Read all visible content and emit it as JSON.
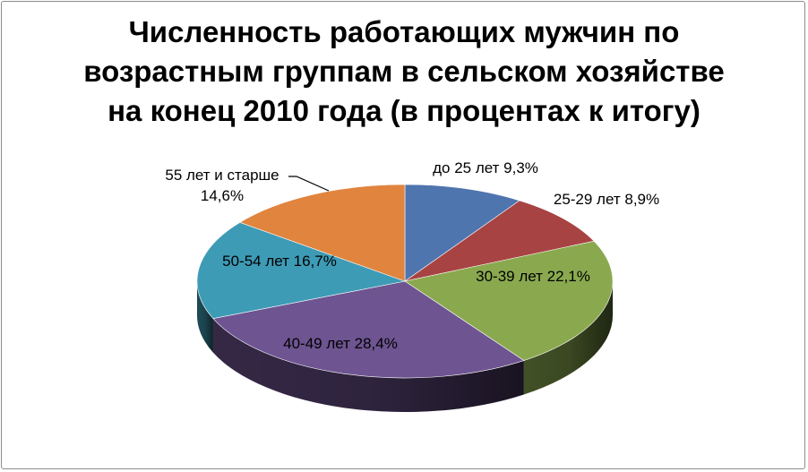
{
  "chart_data": {
    "type": "pie",
    "title": "Численность работающих мужчин по\nвозрастным группам в сельском хозяйстве\nна конец 2010 года (в процентах к итогу)",
    "slices": [
      {
        "name": "до 25 лет",
        "value": 9.3,
        "color": "#4F75AE",
        "label": "до 25 лет 9,3%"
      },
      {
        "name": "25-29 лет",
        "value": 8.9,
        "color": "#A84343",
        "label": "25-29 лет 8,9%"
      },
      {
        "name": "30-39 лет",
        "value": 22.1,
        "color": "#8AA94F",
        "label": "30-39 лет 22,1%"
      },
      {
        "name": "40-49 лет",
        "value": 28.4,
        "color": "#6E5491",
        "label": "40-49 лет 28,4%"
      },
      {
        "name": "50-54 лет",
        "value": 16.7,
        "color": "#3E9BB6",
        "label": "50-54 лет 16,7%"
      },
      {
        "name": "55 лет и старше",
        "value": 14.6,
        "color": "#E0843E",
        "label": "55 лет и старше\n14,6%"
      }
    ],
    "style": "3d",
    "legend": "none"
  }
}
